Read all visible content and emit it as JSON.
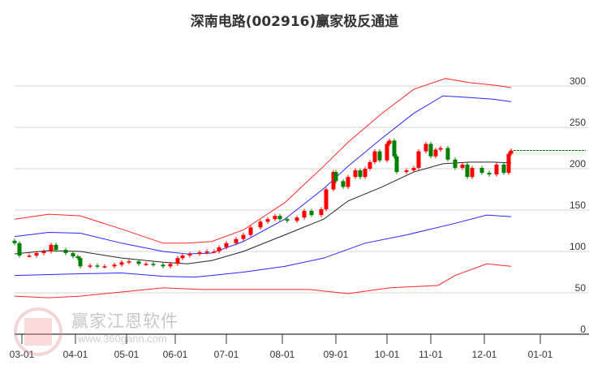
{
  "chart_data": {
    "type": "candlestick-with-channels",
    "title": "深南电路(002916)赢家极反通道",
    "ylim": [
      0,
      300
    ],
    "yticks": [
      0,
      50,
      100,
      150,
      200,
      250,
      300
    ],
    "grid": true,
    "x_unit": "trading day index",
    "xlim": [
      0,
      224
    ],
    "xticks": [
      {
        "i": 3,
        "label": "03-01"
      },
      {
        "i": 25,
        "label": "04-01"
      },
      {
        "i": 46,
        "label": "05-01"
      },
      {
        "i": 66,
        "label": "06-01"
      },
      {
        "i": 87,
        "label": "07-01"
      },
      {
        "i": 110,
        "label": "08-01"
      },
      {
        "i": 132,
        "label": "09-01"
      },
      {
        "i": 153,
        "label": "10-01"
      },
      {
        "i": 171,
        "label": "11-01"
      },
      {
        "i": 193,
        "label": "12-01"
      },
      {
        "i": 216,
        "label": "01-01"
      }
    ],
    "closes": [
      [
        0,
        110
      ],
      [
        2,
        95
      ],
      [
        6,
        95
      ],
      [
        9,
        98
      ],
      [
        12,
        100
      ],
      [
        15,
        108
      ],
      [
        17,
        102
      ],
      [
        21,
        98
      ],
      [
        24,
        94
      ],
      [
        26,
        92
      ],
      [
        27,
        82
      ],
      [
        31,
        83
      ],
      [
        34,
        82
      ],
      [
        37,
        82
      ],
      [
        41,
        84
      ],
      [
        44,
        87
      ],
      [
        47,
        88
      ],
      [
        51,
        85
      ],
      [
        54,
        85
      ],
      [
        57,
        84
      ],
      [
        61,
        82
      ],
      [
        64,
        85
      ],
      [
        67,
        92
      ],
      [
        69,
        95
      ],
      [
        72,
        97
      ],
      [
        76,
        99
      ],
      [
        79,
        100
      ],
      [
        82,
        100
      ],
      [
        84,
        105
      ],
      [
        87,
        110
      ],
      [
        91,
        115
      ],
      [
        94,
        120
      ],
      [
        97,
        129
      ],
      [
        101,
        136
      ],
      [
        104,
        139
      ],
      [
        107,
        143
      ],
      [
        109,
        139
      ],
      [
        112,
        137
      ],
      [
        116,
        141
      ],
      [
        119,
        149
      ],
      [
        122,
        144
      ],
      [
        126,
        151
      ],
      [
        128,
        175
      ],
      [
        131,
        196
      ],
      [
        132,
        185
      ],
      [
        135,
        178
      ],
      [
        137,
        190
      ],
      [
        140,
        198
      ],
      [
        142,
        190
      ],
      [
        144,
        200
      ],
      [
        146,
        208
      ],
      [
        148,
        221
      ],
      [
        150,
        210
      ],
      [
        153,
        230
      ],
      [
        154,
        234
      ],
      [
        156,
        215
      ],
      [
        157,
        196
      ],
      [
        161,
        198
      ],
      [
        164,
        201
      ],
      [
        166,
        221
      ],
      [
        169,
        230
      ],
      [
        171,
        215
      ],
      [
        173,
        223
      ],
      [
        175,
        225
      ],
      [
        178,
        211
      ],
      [
        181,
        201
      ],
      [
        184,
        205
      ],
      [
        186,
        190
      ],
      [
        188,
        201
      ],
      [
        192,
        195
      ],
      [
        195,
        193
      ],
      [
        198,
        205
      ],
      [
        201,
        195
      ],
      [
        203,
        218
      ],
      [
        204,
        222
      ]
    ],
    "last_price_line": 222,
    "series": [
      {
        "name": "upper-red",
        "color": "#ff0000",
        "points": [
          [
            0,
            139
          ],
          [
            14,
            145
          ],
          [
            27,
            143
          ],
          [
            44,
            127
          ],
          [
            61,
            110
          ],
          [
            71,
            110
          ],
          [
            81,
            112
          ],
          [
            94,
            126
          ],
          [
            111,
            159
          ],
          [
            127,
            203
          ],
          [
            137,
            232
          ],
          [
            151,
            267
          ],
          [
            164,
            296
          ],
          [
            177,
            309
          ],
          [
            187,
            304
          ],
          [
            197,
            301
          ],
          [
            204,
            298
          ]
        ]
      },
      {
        "name": "upper-blue",
        "color": "#0000ff",
        "points": [
          [
            0,
            118
          ],
          [
            14,
            123
          ],
          [
            27,
            122
          ],
          [
            44,
            110
          ],
          [
            61,
            100
          ],
          [
            71,
            97
          ],
          [
            81,
            98
          ],
          [
            94,
            112
          ],
          [
            111,
            139
          ],
          [
            127,
            176
          ],
          [
            137,
            203
          ],
          [
            151,
            237
          ],
          [
            164,
            267
          ],
          [
            176,
            288
          ],
          [
            187,
            286
          ],
          [
            197,
            284
          ],
          [
            204,
            281
          ]
        ]
      },
      {
        "name": "middle-black",
        "color": "#000000",
        "points": [
          [
            0,
            97
          ],
          [
            14,
            101
          ],
          [
            27,
            100
          ],
          [
            44,
            92
          ],
          [
            61,
            87
          ],
          [
            71,
            85
          ],
          [
            81,
            89
          ],
          [
            94,
            100
          ],
          [
            111,
            120
          ],
          [
            127,
            139
          ],
          [
            137,
            161
          ],
          [
            151,
            178
          ],
          [
            164,
            196
          ],
          [
            176,
            206
          ],
          [
            187,
            208
          ],
          [
            197,
            208
          ],
          [
            204,
            207
          ]
        ]
      },
      {
        "name": "lower-blue",
        "color": "#0000ff",
        "points": [
          [
            0,
            71
          ],
          [
            27,
            73
          ],
          [
            44,
            74
          ],
          [
            61,
            70
          ],
          [
            74,
            69
          ],
          [
            81,
            71
          ],
          [
            94,
            75
          ],
          [
            111,
            82
          ],
          [
            127,
            92
          ],
          [
            144,
            110
          ],
          [
            161,
            120
          ],
          [
            181,
            134
          ],
          [
            194,
            144
          ],
          [
            204,
            142
          ]
        ]
      },
      {
        "name": "lower-red",
        "color": "#ff0000",
        "points": [
          [
            0,
            46
          ],
          [
            14,
            44
          ],
          [
            27,
            46
          ],
          [
            44,
            51
          ],
          [
            61,
            56
          ],
          [
            77,
            54
          ],
          [
            94,
            54
          ],
          [
            121,
            54
          ],
          [
            137,
            49
          ],
          [
            154,
            56
          ],
          [
            174,
            59
          ],
          [
            181,
            71
          ],
          [
            194,
            85
          ],
          [
            204,
            82
          ]
        ]
      }
    ],
    "colors": {
      "up": "#ff0000",
      "down": "#008000",
      "grid": "#dddddd",
      "axis": "#333333",
      "last_line": "#008000"
    }
  },
  "watermark": {
    "brand": "赢家江恩软件",
    "url": "www.360gann.com",
    "seal": "江赢恩家"
  }
}
